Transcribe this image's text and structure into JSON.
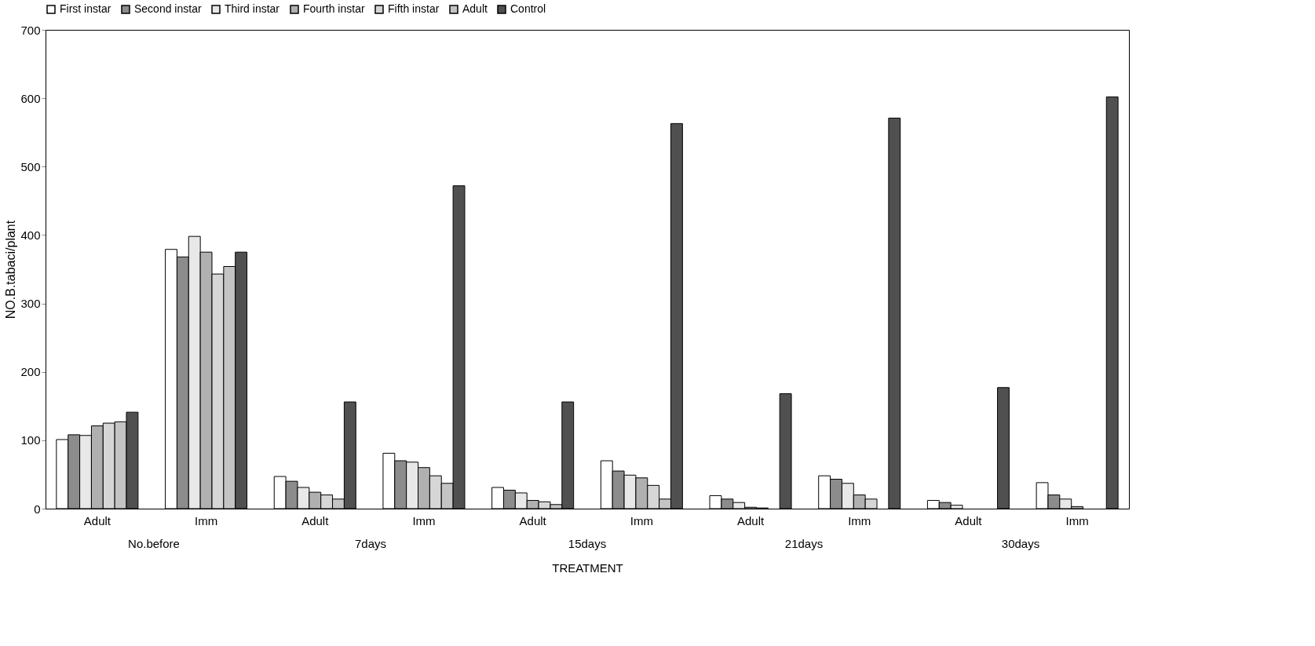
{
  "chart_data": {
    "type": "bar",
    "xlabel": "TREATMENT",
    "ylabel": "NO.B.tabaci/plant",
    "categories": [
      "Adult",
      "Imm",
      "Adult",
      "Imm",
      "Adult",
      "Imm",
      "Adult",
      "Imm",
      "Adult",
      "Imm"
    ],
    "annotations": [
      "No.before",
      "7days",
      "15days",
      "21days",
      "30days"
    ],
    "ylim": [
      0,
      700
    ],
    "yticks": [
      0,
      100,
      200,
      300,
      400,
      500,
      600,
      700
    ],
    "grid": false,
    "legend": "top",
    "series": [
      {
        "name": "First instar",
        "color": "#ffffff",
        "values": [
          101,
          379,
          47,
          81,
          31,
          70,
          19,
          48,
          12,
          38
        ]
      },
      {
        "name": "Second instar",
        "color": "#8c8c8c",
        "values": [
          108,
          368,
          40,
          70,
          27,
          55,
          14,
          43,
          9,
          20
        ]
      },
      {
        "name": "Third instar",
        "color": "#e8e8e8",
        "values": [
          107,
          398,
          31,
          68,
          23,
          49,
          9,
          37,
          5,
          14
        ]
      },
      {
        "name": "Fourth instar",
        "color": "#b0b0b0",
        "values": [
          121,
          375,
          24,
          60,
          12,
          45,
          2,
          20,
          null,
          3
        ]
      },
      {
        "name": "Fifth instar",
        "color": "#d6d6d6",
        "values": [
          125,
          343,
          20,
          48,
          10,
          34,
          1,
          14,
          null,
          null
        ]
      },
      {
        "name": "Adult",
        "color": "#c4c4c4",
        "values": [
          127,
          354,
          14,
          37,
          6,
          14,
          null,
          null,
          null,
          null
        ]
      },
      {
        "name": "Control",
        "color": "#505050",
        "values": [
          141,
          375,
          156,
          472,
          156,
          563,
          168,
          571,
          177,
          602
        ]
      }
    ]
  }
}
